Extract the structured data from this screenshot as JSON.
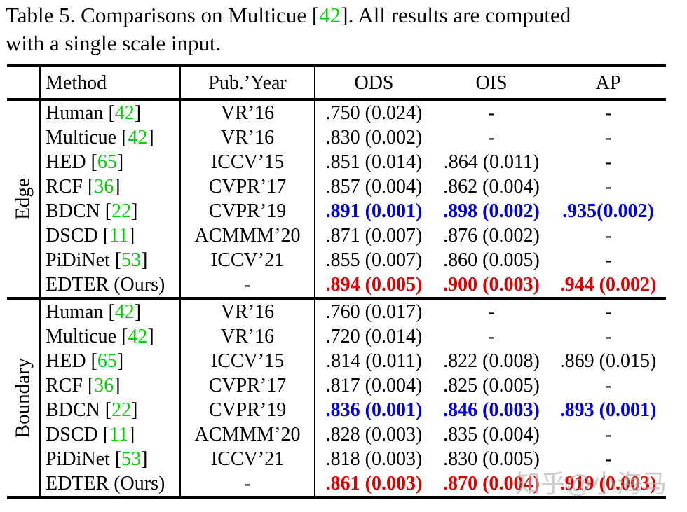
{
  "caption": {
    "line1_prefix": "Table 5. Comparisons on Multicue [",
    "line1_cite": "42",
    "line1_suffix": "]. All results are computed",
    "line2": "with a single scale input."
  },
  "colors": {
    "cite_green": "#00d300",
    "best_blue": "#0000dd",
    "ours_red": "#dd0000",
    "text_black": "#000000"
  },
  "header": {
    "method": "Method",
    "pub": "Pub.’Year",
    "ods": "ODS",
    "ois": "OIS",
    "ap": "AP"
  },
  "sections": [
    {
      "label": "Edge",
      "rows": [
        {
          "method": "Human",
          "cite": "42",
          "pub": "VR’16",
          "ods": ".750 (0.024)",
          "ois": "-",
          "ap": "-",
          "style": "normal"
        },
        {
          "method": "Multicue",
          "cite": "42",
          "pub": "VR’16",
          "ods": ".830 (0.002)",
          "ois": "-",
          "ap": "-",
          "style": "normal"
        },
        {
          "method": "HED",
          "cite": "65",
          "pub": "ICCV’15",
          "ods": ".851 (0.014)",
          "ois": ".864 (0.011)",
          "ap": "-",
          "style": "normal"
        },
        {
          "method": "RCF",
          "cite": "36",
          "pub": "CVPR’17",
          "ods": ".857 (0.004)",
          "ois": ".862 (0.004)",
          "ap": "-",
          "style": "normal"
        },
        {
          "method": "BDCN",
          "cite": "22",
          "pub": "CVPR’19",
          "ods": ".891 (0.001)",
          "ois": ".898 (0.002)",
          "ap": ".935(0.002)",
          "style": "blue"
        },
        {
          "method": "DSCD",
          "cite": "11",
          "pub": "ACMMM’20",
          "ods": ".871 (0.007)",
          "ois": ".876 (0.002)",
          "ap": "-",
          "style": "normal"
        },
        {
          "method": "PiDiNet",
          "cite": "53",
          "pub": "ICCV’21",
          "ods": ".855 (0.007)",
          "ois": ".860 (0.005)",
          "ap": "-",
          "style": "normal"
        },
        {
          "method": "EDTER (Ours)",
          "cite": null,
          "pub": "-",
          "ods": ".894 (0.005)",
          "ois": ".900 (0.003)",
          "ap": ".944 (0.002)",
          "style": "red"
        }
      ]
    },
    {
      "label": "Boundary",
      "rows": [
        {
          "method": "Human",
          "cite": "42",
          "pub": "VR’16",
          "ods": ".760 (0.017)",
          "ois": "-",
          "ap": "-",
          "style": "normal"
        },
        {
          "method": "Multicue",
          "cite": "42",
          "pub": "VR’16",
          "ods": ".720 (0.014)",
          "ois": "-",
          "ap": "-",
          "style": "normal"
        },
        {
          "method": "HED",
          "cite": "65",
          "pub": "ICCV’15",
          "ods": ".814 (0.011)",
          "ois": ".822 (0.008)",
          "ap": ".869 (0.015)",
          "style": "normal"
        },
        {
          "method": "RCF",
          "cite": "36",
          "pub": "CVPR’17",
          "ods": ".817 (0.004)",
          "ois": ".825 (0.005)",
          "ap": "-",
          "style": "normal"
        },
        {
          "method": "BDCN",
          "cite": "22",
          "pub": "CVPR’19",
          "ods": ".836 (0.001)",
          "ois": ".846 (0.003)",
          "ap": ".893 (0.001)",
          "style": "blue"
        },
        {
          "method": "DSCD",
          "cite": "11",
          "pub": "ACMMM’20",
          "ods": ".828 (0.003)",
          "ois": ".835 (0.004)",
          "ap": "-",
          "style": "normal"
        },
        {
          "method": "PiDiNet",
          "cite": "53",
          "pub": "ICCV’21",
          "ods": ".818 (0.003)",
          "ois": ".830 (0.005)",
          "ap": "-",
          "style": "normal"
        },
        {
          "method": "EDTER (Ours)",
          "cite": null,
          "pub": "-",
          "ods": ".861 (0.003)",
          "ois": ".870 (0.004)",
          "ap": ".919 (0.003)",
          "style": "red"
        }
      ]
    }
  ],
  "watermark": "知乎@小海马"
}
